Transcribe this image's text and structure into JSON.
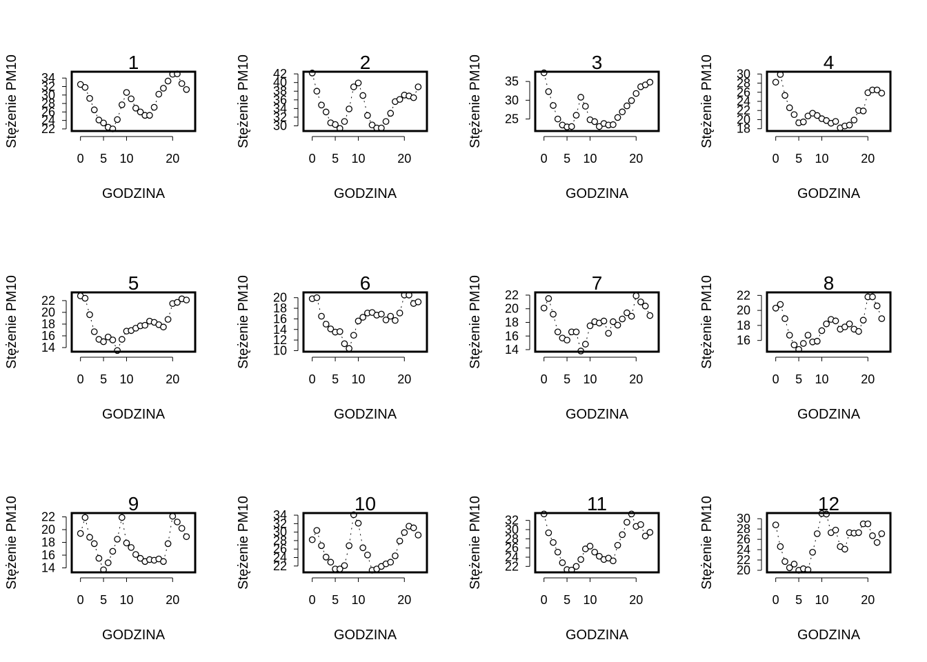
{
  "chart_data": [
    {
      "type": "scatter",
      "title": "1",
      "xlabel": "GODZINA",
      "ylabel": "Stężenie PM10",
      "xlim": [
        -1,
        24
      ],
      "ylim": [
        21.5,
        35.5
      ],
      "xticks": [
        0,
        5,
        10,
        20
      ],
      "yticks": [
        22,
        24,
        26,
        28,
        30,
        32,
        34
      ],
      "x": [
        0,
        1,
        2,
        3,
        4,
        5,
        6,
        7,
        8,
        9,
        10,
        11,
        12,
        13,
        14,
        15,
        16,
        17,
        18,
        19,
        20,
        21,
        22,
        23
      ],
      "y": [
        32.5,
        31.8,
        29.2,
        26.5,
        24.1,
        23.4,
        22.4,
        22.0,
        24.2,
        27.7,
        30.6,
        29.1,
        26.9,
        26.0,
        25.2,
        25.2,
        27.1,
        30.2,
        31.6,
        33.3,
        34.9,
        35.0,
        32.7,
        31.3
      ]
    },
    {
      "type": "scatter",
      "title": "2",
      "xlabel": "GODZINA",
      "ylabel": "Stężenie PM10",
      "xlim": [
        -1,
        24
      ],
      "ylim": [
        28.8,
        42.5
      ],
      "xticks": [
        0,
        5,
        10,
        20
      ],
      "yticks": [
        30,
        32,
        34,
        36,
        38,
        40,
        42
      ],
      "x": [
        0,
        1,
        2,
        3,
        4,
        5,
        6,
        7,
        8,
        9,
        10,
        11,
        12,
        13,
        14,
        15,
        16,
        17,
        18,
        19,
        20,
        21,
        22,
        23
      ],
      "y": [
        42.2,
        38.0,
        34.8,
        33.2,
        30.7,
        30.3,
        29.4,
        31.0,
        33.9,
        39.0,
        39.9,
        37.0,
        32.4,
        30.2,
        29.5,
        29.5,
        31.0,
        32.9,
        35.6,
        36.1,
        37.1,
        36.9,
        36.5,
        39.0
      ]
    },
    {
      "type": "scatter",
      "title": "3",
      "xlabel": "GODZINA",
      "ylabel": "Stężenie PM10",
      "xlim": [
        -1,
        24
      ],
      "ylim": [
        21.8,
        37.6
      ],
      "xticks": [
        0,
        5,
        10,
        20
      ],
      "yticks": [
        25,
        30,
        35
      ],
      "x": [
        0,
        1,
        2,
        3,
        4,
        5,
        6,
        7,
        8,
        9,
        10,
        11,
        12,
        13,
        14,
        15,
        16,
        17,
        18,
        19,
        20,
        21,
        22,
        23
      ],
      "y": [
        37.3,
        32.3,
        28.6,
        25.0,
        23.4,
        22.9,
        23.0,
        26.0,
        30.8,
        28.4,
        24.8,
        24.3,
        23.0,
        23.8,
        23.4,
        23.5,
        25.4,
        26.9,
        28.5,
        29.9,
        31.8,
        33.6,
        34.1,
        34.8
      ]
    },
    {
      "type": "scatter",
      "title": "4",
      "xlabel": "GODZINA",
      "ylabel": "Stężenie PM10",
      "xlim": [
        -1,
        24
      ],
      "ylim": [
        17.5,
        30.5
      ],
      "xticks": [
        0,
        5,
        10,
        20
      ],
      "yticks": [
        18,
        20,
        22,
        24,
        26,
        28,
        30
      ],
      "x": [
        0,
        1,
        2,
        3,
        4,
        5,
        6,
        7,
        8,
        9,
        10,
        11,
        12,
        13,
        14,
        15,
        16,
        17,
        18,
        19,
        20,
        21,
        22,
        23
      ],
      "y": [
        28.2,
        29.9,
        25.3,
        22.6,
        21.1,
        19.3,
        19.5,
        20.8,
        21.4,
        20.9,
        20.2,
        19.8,
        19.2,
        19.6,
        18.2,
        18.6,
        18.8,
        19.9,
        22.0,
        21.9,
        25.9,
        26.5,
        26.5,
        25.8
      ]
    },
    {
      "type": "scatter",
      "title": "5",
      "xlabel": "GODZINA",
      "ylabel": "Stężenie PM10",
      "xlim": [
        -1,
        24
      ],
      "ylim": [
        13.3,
        23.4
      ],
      "xticks": [
        0,
        5,
        10,
        20
      ],
      "yticks": [
        14,
        16,
        18,
        20,
        22
      ],
      "x": [
        0,
        1,
        2,
        3,
        4,
        5,
        6,
        7,
        8,
        9,
        10,
        11,
        12,
        13,
        14,
        15,
        16,
        17,
        18,
        19,
        20,
        21,
        22,
        23
      ],
      "y": [
        22.8,
        22.4,
        19.6,
        16.7,
        15.4,
        15.0,
        15.8,
        15.3,
        13.5,
        15.4,
        16.8,
        16.9,
        17.3,
        17.7,
        17.8,
        18.5,
        18.3,
        17.9,
        17.5,
        18.8,
        21.5,
        21.7,
        22.3,
        22.1
      ]
    },
    {
      "type": "scatter",
      "title": "6",
      "xlabel": "GODZINA",
      "ylabel": "Stężenie PM10",
      "xlim": [
        -1,
        24
      ],
      "ylim": [
        9.8,
        21.0
      ],
      "xticks": [
        0,
        5,
        10,
        20
      ],
      "yticks": [
        10,
        12,
        14,
        16,
        18,
        20
      ],
      "x": [
        0,
        1,
        2,
        3,
        4,
        5,
        6,
        7,
        8,
        9,
        10,
        11,
        12,
        13,
        14,
        15,
        16,
        17,
        18,
        19,
        20,
        21,
        22,
        23
      ],
      "y": [
        19.8,
        20.0,
        16.5,
        15.0,
        14.1,
        13.5,
        13.6,
        11.3,
        10.4,
        12.9,
        15.6,
        16.3,
        17.1,
        17.2,
        16.7,
        16.9,
        15.8,
        16.5,
        15.7,
        17.1,
        20.5,
        20.5,
        18.9,
        19.2
      ]
    },
    {
      "type": "scatter",
      "title": "7",
      "xlabel": "GODZINA",
      "ylabel": "Stężenie PM10",
      "xlim": [
        -1,
        24
      ],
      "ylim": [
        13.7,
        22.4
      ],
      "xticks": [
        0,
        5,
        10,
        20
      ],
      "yticks": [
        14,
        16,
        18,
        20,
        22
      ],
      "x": [
        0,
        1,
        2,
        3,
        4,
        5,
        6,
        7,
        8,
        9,
        10,
        11,
        12,
        13,
        14,
        15,
        16,
        17,
        18,
        19,
        20,
        21,
        22,
        23
      ],
      "y": [
        20.1,
        21.5,
        19.2,
        16.6,
        15.7,
        15.4,
        16.6,
        16.6,
        13.8,
        14.8,
        17.5,
        18.1,
        17.9,
        18.2,
        16.4,
        18.1,
        17.6,
        18.5,
        19.4,
        18.9,
        21.9,
        21.0,
        20.4,
        19.0
      ]
    },
    {
      "type": "scatter",
      "title": "8",
      "xlabel": "GODZINA",
      "ylabel": "Stężenie PM10",
      "xlim": [
        -1,
        24
      ],
      "ylim": [
        14.5,
        22.4
      ],
      "xticks": [
        0,
        5,
        10,
        20
      ],
      "yticks": [
        16,
        18,
        20,
        22
      ],
      "x": [
        0,
        1,
        2,
        3,
        4,
        5,
        6,
        7,
        8,
        9,
        10,
        11,
        12,
        13,
        14,
        15,
        16,
        17,
        18,
        19,
        20,
        21,
        22,
        23
      ],
      "y": [
        20.3,
        20.8,
        18.9,
        16.7,
        15.4,
        14.8,
        15.6,
        16.7,
        15.8,
        15.9,
        17.3,
        18.2,
        18.8,
        18.6,
        17.5,
        17.8,
        18.2,
        17.5,
        17.2,
        18.7,
        21.8,
        21.8,
        20.6,
        18.9
      ]
    },
    {
      "type": "scatter",
      "title": "9",
      "xlabel": "GODZINA",
      "ylabel": "Stężenie PM10",
      "xlim": [
        -1,
        24
      ],
      "ylim": [
        13.3,
        22.6
      ],
      "xticks": [
        0,
        5,
        10,
        20
      ],
      "yticks": [
        14,
        16,
        18,
        20,
        22
      ],
      "x": [
        0,
        1,
        2,
        3,
        4,
        5,
        6,
        7,
        8,
        9,
        10,
        11,
        12,
        13,
        14,
        15,
        16,
        17,
        18,
        19,
        20,
        21,
        22,
        23
      ],
      "y": [
        19.4,
        21.9,
        18.8,
        17.8,
        15.5,
        13.7,
        14.8,
        16.6,
        18.5,
        21.9,
        17.9,
        17.2,
        16.1,
        15.5,
        15.0,
        15.3,
        15.2,
        15.4,
        15.0,
        17.8,
        22.1,
        21.2,
        20.2,
        18.9
      ]
    },
    {
      "type": "scatter",
      "title": "10",
      "xlabel": "GODZINA",
      "ylabel": "Stężenie PM10",
      "xlim": [
        -1,
        24
      ],
      "ylim": [
        20.5,
        34.5
      ],
      "xticks": [
        0,
        5,
        10,
        20
      ],
      "yticks": [
        22,
        24,
        26,
        28,
        30,
        32,
        34
      ],
      "x": [
        0,
        1,
        2,
        3,
        4,
        5,
        6,
        7,
        8,
        9,
        10,
        11,
        12,
        13,
        14,
        15,
        16,
        17,
        18,
        19,
        20,
        21,
        22,
        23
      ],
      "y": [
        28.2,
        30.4,
        26.8,
        24.1,
        22.9,
        21.3,
        21.3,
        22.1,
        26.8,
        34.1,
        32.1,
        26.3,
        24.6,
        21.0,
        21.3,
        21.9,
        22.5,
        22.9,
        24.4,
        27.9,
        29.9,
        31.4,
        31.0,
        29.3
      ]
    },
    {
      "type": "scatter",
      "title": "11",
      "xlabel": "GODZINA",
      "ylabel": "Stężenie PM10",
      "xlim": [
        -1,
        24
      ],
      "ylim": [
        20.7,
        33.6
      ],
      "xticks": [
        0,
        5,
        10,
        20
      ],
      "yticks": [
        22,
        24,
        26,
        28,
        30,
        32
      ],
      "x": [
        0,
        1,
        2,
        3,
        4,
        5,
        6,
        7,
        8,
        9,
        10,
        11,
        12,
        13,
        14,
        15,
        16,
        17,
        18,
        19,
        20,
        21,
        22,
        23
      ],
      "y": [
        33.4,
        29.3,
        27.2,
        25.1,
        22.8,
        21.3,
        21.2,
        22.0,
        23.5,
        25.8,
        26.4,
        25.1,
        24.2,
        23.5,
        23.8,
        23.2,
        26.6,
        28.9,
        31.6,
        33.4,
        30.7,
        31.1,
        28.6,
        29.4
      ]
    },
    {
      "type": "scatter",
      "title": "12",
      "xlabel": "GODZINA",
      "ylabel": "Stężenie PM10",
      "xlim": [
        -1,
        24
      ],
      "ylim": [
        19.6,
        31.1
      ],
      "xticks": [
        0,
        5,
        10,
        20
      ],
      "yticks": [
        20,
        22,
        24,
        26,
        28,
        30
      ],
      "x": [
        0,
        1,
        2,
        3,
        4,
        5,
        6,
        7,
        8,
        9,
        10,
        11,
        12,
        13,
        14,
        15,
        16,
        17,
        18,
        19,
        20,
        21,
        22,
        23
      ],
      "y": [
        28.8,
        24.6,
        21.7,
        20.5,
        21.2,
        20.0,
        20.3,
        20.1,
        23.5,
        27.1,
        31.0,
        30.9,
        27.3,
        27.8,
        24.6,
        24.1,
        27.3,
        27.2,
        27.3,
        29.0,
        29.0,
        26.7,
        25.4,
        27.1
      ]
    }
  ]
}
